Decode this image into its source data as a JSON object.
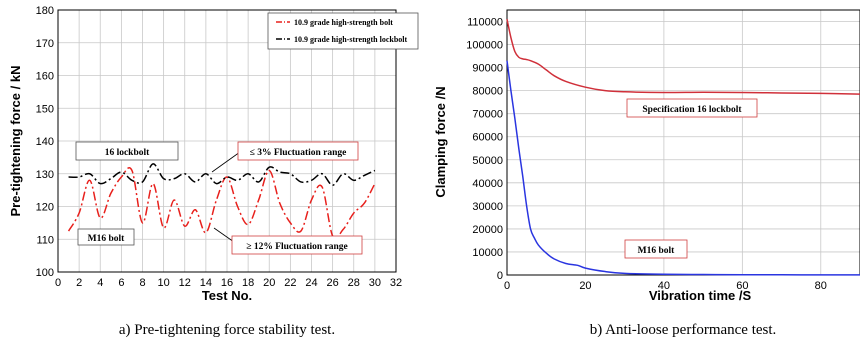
{
  "chart_data": [
    {
      "type": "line",
      "xlabel": "Test No.",
      "ylabel": "Pre-tightening force / kN",
      "xlim": [
        0,
        32
      ],
      "ylim": [
        100,
        180
      ],
      "xticks": [
        0,
        2,
        4,
        6,
        8,
        10,
        12,
        14,
        16,
        18,
        20,
        22,
        24,
        26,
        28,
        30,
        32
      ],
      "yticks": [
        100,
        110,
        120,
        130,
        140,
        150,
        160,
        170,
        180
      ],
      "grid": true,
      "legend_position": "top-right",
      "caption": "a) Pre-tightening force stability test.",
      "x": [
        1,
        2,
        3,
        4,
        5,
        6,
        7,
        8,
        9,
        10,
        11,
        12,
        13,
        14,
        15,
        16,
        17,
        18,
        19,
        20,
        21,
        22,
        23,
        24,
        25,
        26,
        27,
        28,
        29,
        30
      ],
      "series": [
        {
          "name": "10.9 grade high-strength bolt",
          "color": "#e8201c",
          "style": "dash-dot",
          "values": [
            112.5,
            118,
            128,
            116.5,
            124,
            129,
            131,
            115,
            127,
            113.5,
            122,
            114,
            119,
            112,
            122,
            129,
            120,
            114.5,
            122,
            131,
            121,
            115,
            112.5,
            122,
            126,
            111,
            113,
            118,
            121,
            127
          ]
        },
        {
          "name": "10.9 grade high-strength lockbolt",
          "color": "#000000",
          "style": "dash-dot",
          "values": [
            129,
            129,
            130,
            127,
            128.5,
            130.5,
            128,
            127.5,
            133,
            128.5,
            128.5,
            130,
            127.5,
            130,
            127,
            129,
            128,
            130,
            127.5,
            132,
            130.5,
            130,
            127.5,
            128,
            130,
            126.5,
            130,
            128,
            129.5,
            131
          ]
        }
      ],
      "annotations": {
        "lockbolt_label": "16 lockbolt",
        "bolt_label": "M16 bolt",
        "small_range": "≤ 3% Fluctuation range",
        "large_range": "≥ 12% Fluctuation range"
      }
    },
    {
      "type": "line",
      "xlabel": "Vibration time /S",
      "ylabel": "Clamping force /N",
      "xlim": [
        0,
        90
      ],
      "ylim": [
        0,
        115000
      ],
      "xticks": [
        0,
        20,
        40,
        60,
        80
      ],
      "yticks": [
        0,
        10000,
        20000,
        30000,
        40000,
        50000,
        60000,
        70000,
        80000,
        90000,
        100000,
        110000
      ],
      "grid": true,
      "caption": "b) Anti-loose performance test.",
      "series": [
        {
          "color": "#d0303a",
          "x": [
            0,
            1,
            2,
            3,
            4,
            5,
            6,
            8,
            10,
            12,
            15,
            20,
            25,
            30,
            40,
            50,
            60,
            70,
            80,
            90
          ],
          "values": [
            111000,
            103000,
            97000,
            94500,
            93800,
            93500,
            93000,
            91500,
            89000,
            86500,
            84000,
            81500,
            80000,
            79500,
            79200,
            79300,
            79200,
            79000,
            78800,
            78500
          ]
        },
        {
          "color": "#2a35e0",
          "x": [
            0,
            1,
            2,
            3,
            4,
            5,
            6,
            7,
            8,
            10,
            12,
            15,
            18,
            20,
            25,
            30,
            40,
            50,
            60,
            70,
            80,
            90
          ],
          "values": [
            93000,
            80000,
            68000,
            55000,
            43000,
            30000,
            20000,
            16000,
            13000,
            9500,
            7000,
            5000,
            4200,
            3000,
            1500,
            700,
            300,
            200,
            100,
            100,
            50,
            50
          ]
        }
      ],
      "annotations": {
        "lockbolt_label": "Specification 16 lockbolt",
        "bolt_label": "M16 bolt"
      }
    }
  ]
}
